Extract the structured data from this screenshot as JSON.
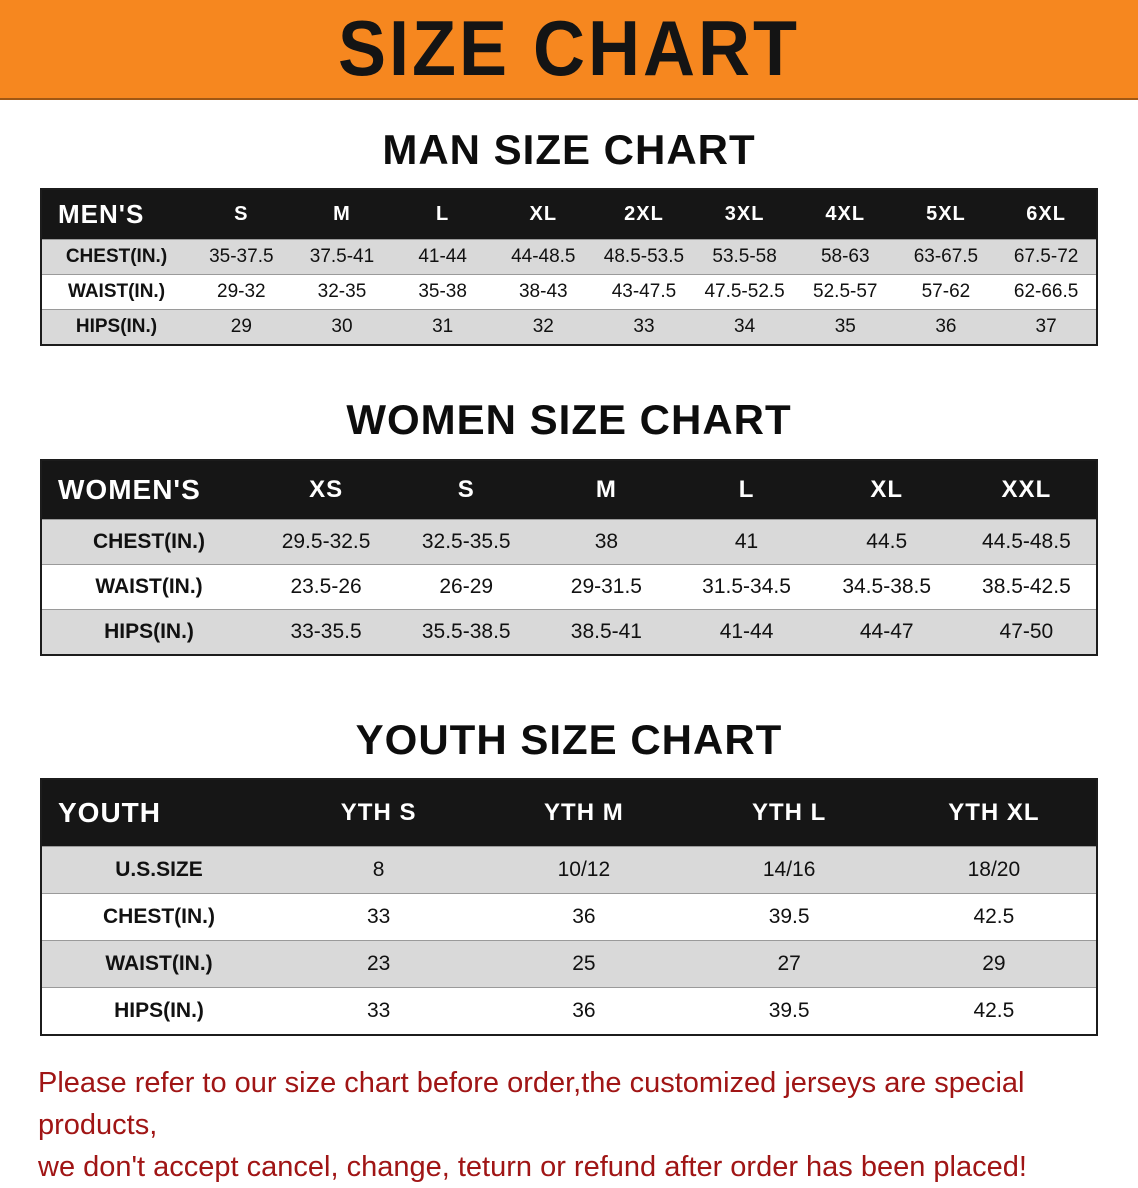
{
  "banner": {
    "title": "SIZE CHART"
  },
  "colors": {
    "banner_bg": "#f6871f",
    "table_header_bg": "#161616",
    "row_alt_bg": "#d9d9d9",
    "note_text": "#a01515"
  },
  "sections": {
    "men": {
      "heading": "MAN SIZE CHART",
      "table": {
        "header": [
          "MEN'S",
          "S",
          "M",
          "L",
          "XL",
          "2XL",
          "3XL",
          "4XL",
          "5XL",
          "6XL"
        ],
        "rows": [
          [
            "CHEST(IN.)",
            "35-37.5",
            "37.5-41",
            "41-44",
            "44-48.5",
            "48.5-53.5",
            "53.5-58",
            "58-63",
            "63-67.5",
            "67.5-72"
          ],
          [
            "WAIST(IN.)",
            "29-32",
            "32-35",
            "35-38",
            "38-43",
            "43-47.5",
            "47.5-52.5",
            "52.5-57",
            "57-62",
            "62-66.5"
          ],
          [
            "HIPS(IN.)",
            "29",
            "30",
            "31",
            "32",
            "33",
            "34",
            "35",
            "36",
            "37"
          ]
        ]
      }
    },
    "women": {
      "heading": "WOMEN SIZE CHART",
      "table": {
        "header": [
          "WOMEN'S",
          "XS",
          "S",
          "M",
          "L",
          "XL",
          "XXL"
        ],
        "rows": [
          [
            "CHEST(IN.)",
            "29.5-32.5",
            "32.5-35.5",
            "38",
            "41",
            "44.5",
            "44.5-48.5"
          ],
          [
            "WAIST(IN.)",
            "23.5-26",
            "26-29",
            "29-31.5",
            "31.5-34.5",
            "34.5-38.5",
            "38.5-42.5"
          ],
          [
            "HIPS(IN.)",
            "33-35.5",
            "35.5-38.5",
            "38.5-41",
            "41-44",
            "44-47",
            "47-50"
          ]
        ]
      }
    },
    "youth": {
      "heading": "YOUTH SIZE CHART",
      "table": {
        "header": [
          "YOUTH",
          "YTH S",
          "YTH M",
          "YTH L",
          "YTH XL"
        ],
        "rows": [
          [
            "U.S.SIZE",
            "8",
            "10/12",
            "14/16",
            "18/20"
          ],
          [
            "CHEST(IN.)",
            "33",
            "36",
            "39.5",
            "42.5"
          ],
          [
            "WAIST(IN.)",
            "23",
            "25",
            "27",
            "29"
          ],
          [
            "HIPS(IN.)",
            "33",
            "36",
            "39.5",
            "42.5"
          ]
        ]
      }
    }
  },
  "note": {
    "line1": "Please refer to our size chart before order,the customized jerseys are special products,",
    "line2": "we don't accept cancel, change, teturn or refund after order has been placed!"
  }
}
